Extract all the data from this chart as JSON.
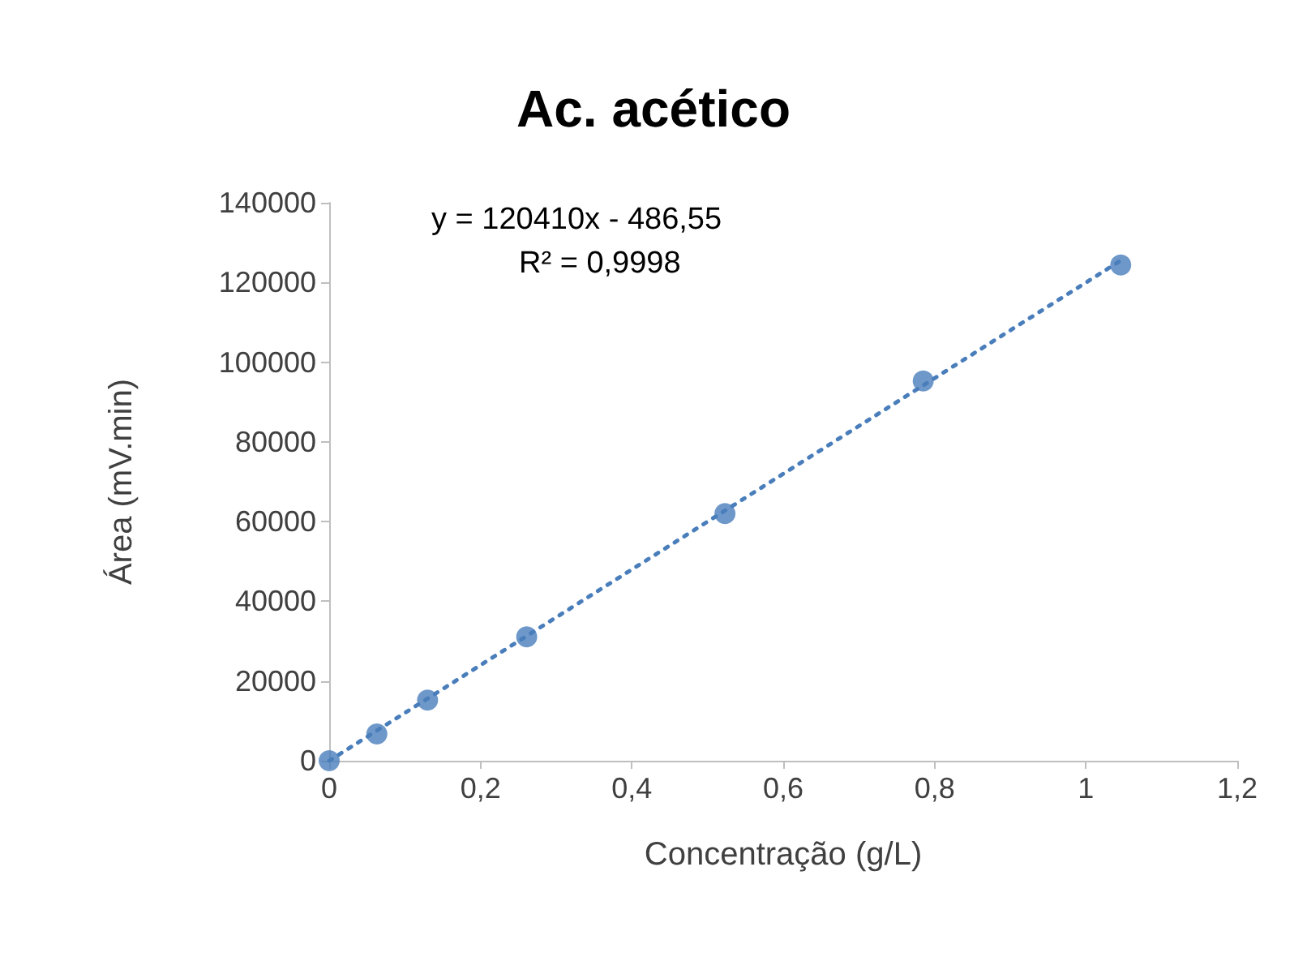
{
  "chart_data": {
    "type": "scatter",
    "title": "Ac. acético",
    "xlabel": "Concentração (g/L)",
    "ylabel": "Área (mV.min)",
    "annotations": [
      "y = 120410x - 486,55",
      "R² = 0,9998"
    ],
    "xlim": [
      0,
      1.2
    ],
    "xticks": [
      {
        "value": 0,
        "label": "0"
      },
      {
        "value": 0.2,
        "label": "0,2"
      },
      {
        "value": 0.4,
        "label": "0,4"
      },
      {
        "value": 0.6,
        "label": "0,6"
      },
      {
        "value": 0.8,
        "label": "0,8"
      },
      {
        "value": 1,
        "label": "1"
      },
      {
        "value": 1.2,
        "label": "1,2"
      }
    ],
    "ylim": [
      0,
      140000
    ],
    "yticks": [
      0,
      20000,
      40000,
      60000,
      80000,
      100000,
      120000,
      140000
    ],
    "grid": false,
    "series": [
      {
        "color": "#4a7ebb",
        "marker": "circle",
        "x": [
          0,
          0.063,
          0.13,
          0.261,
          0.523,
          0.785,
          1.046
        ],
        "values": [
          0,
          6700,
          15200,
          31100,
          62000,
          95300,
          124400
        ]
      },
      {
        "type": "line",
        "color": "#4a7ebb",
        "marker": "none",
        "line_style": "dotted",
        "x": [
          0,
          1.046
        ],
        "values": [
          0,
          125500
        ]
      }
    ]
  }
}
